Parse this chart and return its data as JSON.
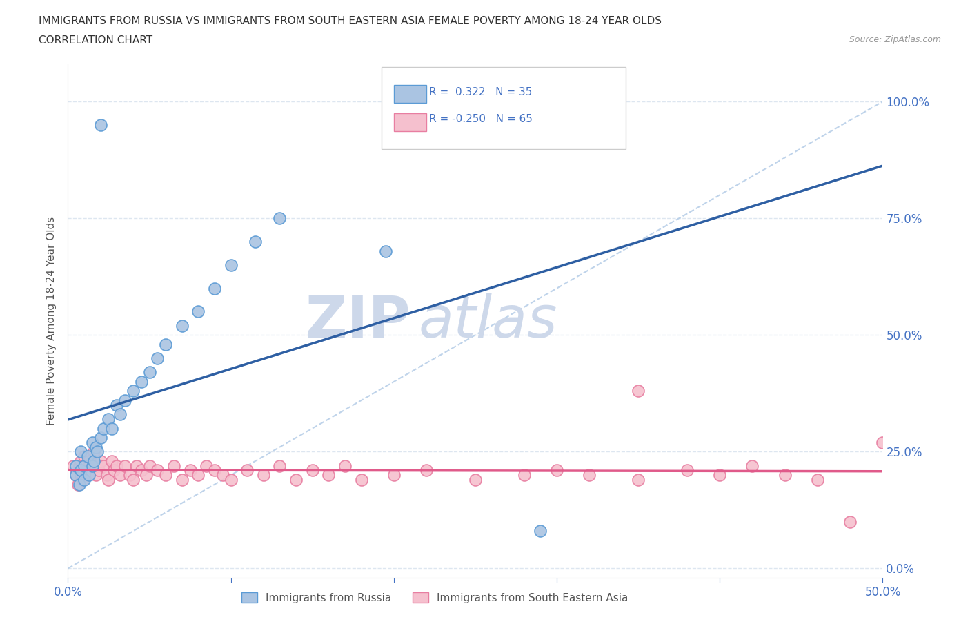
{
  "title_line1": "IMMIGRANTS FROM RUSSIA VS IMMIGRANTS FROM SOUTH EASTERN ASIA FEMALE POVERTY AMONG 18-24 YEAR OLDS",
  "title_line2": "CORRELATION CHART",
  "source_text": "Source: ZipAtlas.com",
  "ylabel": "Female Poverty Among 18-24 Year Olds",
  "xlim": [
    0.0,
    0.5
  ],
  "ylim": [
    -0.02,
    1.08
  ],
  "yticks": [
    0.0,
    0.25,
    0.5,
    0.75,
    1.0
  ],
  "ytick_labels": [
    "0.0%",
    "25.0%",
    "50.0%",
    "75.0%",
    "100.0%"
  ],
  "xtick_labels_visible": [
    "0.0%",
    "50.0%"
  ],
  "russia_color": "#aac4e2",
  "russia_edge_color": "#5b9bd5",
  "sea_color": "#f5c0ce",
  "sea_edge_color": "#e87ea1",
  "russia_R": 0.322,
  "russia_N": 35,
  "sea_R": -0.25,
  "sea_N": 65,
  "russia_line_color": "#2e5fa3",
  "sea_line_color": "#e05a8a",
  "diagonal_line_color": "#b8cfe8",
  "watermark_color": "#cdd8ea",
  "legend_russia_label": "Immigrants from Russia",
  "legend_sea_label": "Immigrants from South Eastern Asia",
  "russia_x": [
    0.005,
    0.005,
    0.007,
    0.008,
    0.008,
    0.01,
    0.01,
    0.012,
    0.013,
    0.015,
    0.015,
    0.016,
    0.017,
    0.018,
    0.02,
    0.022,
    0.025,
    0.027,
    0.03,
    0.032,
    0.035,
    0.04,
    0.045,
    0.05,
    0.055,
    0.06,
    0.07,
    0.08,
    0.09,
    0.1,
    0.115,
    0.13,
    0.02,
    0.195,
    0.29
  ],
  "russia_y": [
    0.2,
    0.22,
    0.18,
    0.21,
    0.25,
    0.22,
    0.19,
    0.24,
    0.2,
    0.22,
    0.27,
    0.23,
    0.26,
    0.25,
    0.28,
    0.3,
    0.32,
    0.3,
    0.35,
    0.33,
    0.36,
    0.38,
    0.4,
    0.42,
    0.45,
    0.48,
    0.52,
    0.55,
    0.6,
    0.65,
    0.7,
    0.75,
    0.95,
    0.68,
    0.08
  ],
  "sea_x": [
    0.003,
    0.005,
    0.006,
    0.007,
    0.008,
    0.008,
    0.009,
    0.01,
    0.01,
    0.012,
    0.013,
    0.014,
    0.015,
    0.016,
    0.017,
    0.018,
    0.019,
    0.02,
    0.022,
    0.024,
    0.025,
    0.027,
    0.028,
    0.03,
    0.032,
    0.035,
    0.038,
    0.04,
    0.042,
    0.045,
    0.048,
    0.05,
    0.055,
    0.06,
    0.065,
    0.07,
    0.075,
    0.08,
    0.085,
    0.09,
    0.095,
    0.1,
    0.11,
    0.12,
    0.13,
    0.14,
    0.15,
    0.16,
    0.17,
    0.18,
    0.2,
    0.22,
    0.25,
    0.28,
    0.3,
    0.32,
    0.35,
    0.38,
    0.4,
    0.42,
    0.44,
    0.46,
    0.35,
    0.48,
    0.5
  ],
  "sea_y": [
    0.22,
    0.2,
    0.18,
    0.22,
    0.2,
    0.23,
    0.19,
    0.24,
    0.22,
    0.2,
    0.23,
    0.21,
    0.22,
    0.25,
    0.2,
    0.22,
    0.21,
    0.23,
    0.22,
    0.2,
    0.19,
    0.23,
    0.21,
    0.22,
    0.2,
    0.22,
    0.2,
    0.19,
    0.22,
    0.21,
    0.2,
    0.22,
    0.21,
    0.2,
    0.22,
    0.19,
    0.21,
    0.2,
    0.22,
    0.21,
    0.2,
    0.19,
    0.21,
    0.2,
    0.22,
    0.19,
    0.21,
    0.2,
    0.22,
    0.19,
    0.2,
    0.21,
    0.19,
    0.2,
    0.21,
    0.2,
    0.19,
    0.21,
    0.2,
    0.22,
    0.2,
    0.19,
    0.38,
    0.1,
    0.27
  ],
  "background_color": "#ffffff",
  "grid_color": "#dde6f0",
  "grid_style": "--"
}
